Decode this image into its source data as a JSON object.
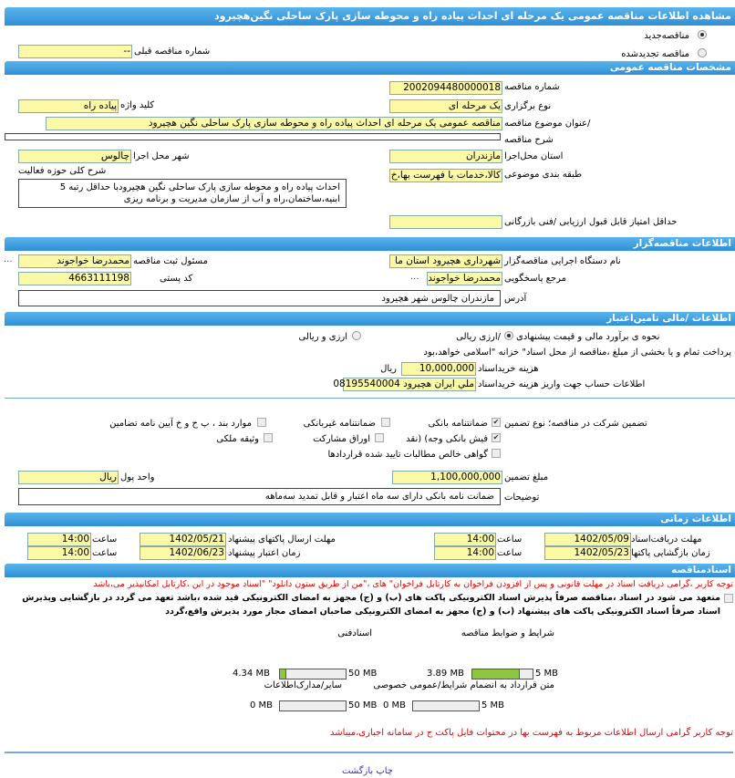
{
  "title": "مشاهده اطلاعات مناقصه  عمومی یک مرحله ای احداث پیاده راه و محوطه سازی پارک ساحلی نگین‌هچیرود",
  "tender_type": {
    "new_label": "مناقصه‌جدید",
    "renewed_label": "مناقصه تجدیدشده",
    "selected": "new",
    "prev_label": "شماره  مناقصه قبلی",
    "prev_value": "--"
  },
  "general": {
    "header": "مشخصات مناقصه عمومی",
    "number_label": "شماره مناقصه",
    "number": "2002094480000018",
    "holding_label": "نوع برگزاری",
    "holding": "یک مرحله ای",
    "keyword_label": "کلید واژه",
    "keyword": "پیاده راه",
    "subject_label": "/عنوان  موضوع مناقصه",
    "subject": "مناقصه عمومی یک مرحله ای احداث پیاده راه و محوطه سازی پارک ساحلی نگین هچیرود",
    "desc_label": "شرح مناقصه",
    "desc": "",
    "province_label": "استان محل‌اجرا",
    "province": "مازندران",
    "city_label": "شهر محل اجرا",
    "city": "چالوس",
    "category_label": "طبقه بندی موضوعی",
    "category": "کالا،خدمات با فهرست بها،خ",
    "scope_label": "شرح کلی حوزه فعالیت",
    "scope": "احداث پیاده راه و محوطه سازی پارک ساحلی نگین هچیرودبا حداقل رتبه 5 ابنیه،ساختمان،راه و آب از سازمان مدیریت و برنامه ریزی",
    "min_score_label": "حداقل امتیاز قابل قبول  ارزیابی /فنی بازرگانی",
    "min_score": ""
  },
  "organizer": {
    "header": "اطلاعات مناقصه‌گزار",
    "org_label": "نام دستگاه اجرایی  مناقصه‌گزار",
    "org": "شهرداری هچیرود استان ما",
    "registrar_label": "مسئول ثبت مناقصه",
    "registrar": "محمدرضا خواجوند",
    "respondent_label": "مرجع پاسخگویی",
    "respondent": "محمدرضا خواجوند",
    "postal_label": "کد پستی",
    "postal": "4663111198",
    "address_label": "آدرس",
    "address": "مازندران چالوس شهر هچیرود",
    "more": "..."
  },
  "finance": {
    "header": "اطلاعات /مالی تامین‌اعتبار",
    "estimate_label": "نحوه ی برآورد مالی و قیمت پیشنهادی",
    "opt_rial": "/ارزی ریالی",
    "opt_both": "ارزی و ریالی",
    "selected": "rial",
    "treasury_note": "پرداخت تمام و یا بخشی از مبلغ ،مناقصه از محل اسناد\" خزانه \"اسلامی خواهد،بود",
    "doc_fee_label": "هزینه خریداسناد",
    "doc_fee": "10,000,000",
    "doc_fee_unit": "ریال",
    "account_label": "اطلاعات حساب جهت واریز هزینه خریداسناد",
    "account": "ملي ايران هچيرود 08195540004"
  },
  "guarantee": {
    "label": "تضمین شرکت در مناقصه؛  نوع    تضمین",
    "options": [
      {
        "label": "ضمانتنامه  بانکی",
        "checked": true
      },
      {
        "label": "ضمانتنامه  غیربانکی",
        "checked": false
      },
      {
        "label": "موارد  بند ، پ ح و خ آیین نامه تضامین",
        "checked": false
      },
      {
        "label": "فیش  بانکی وجه) (نقد",
        "checked": true
      },
      {
        "label": "اوراق  مشارکت",
        "checked": false
      },
      {
        "label": "وثیقه ملکی",
        "checked": false
      },
      {
        "label": "گواهی  خالص مطالبات تایید شده قراردادها",
        "checked": false
      }
    ],
    "amount_label": "مبلغ تضمین",
    "amount": "1,100,000,000",
    "currency_label": "واحد پول",
    "currency": "ریال",
    "notes_label": "توضیحات",
    "notes": "ضمانت نامه بانکی دارای سه ماه  اعتبار و قابل تمدید سه‌ماهه"
  },
  "timing": {
    "header": "اطلاعات زمانی",
    "doc_deadline_label": "مهلت  دریافت‌اسناد",
    "doc_deadline": "1402/05/09",
    "doc_deadline_time": "14:00",
    "submit_label": "مهلت      ارسال  پاکتهای پیشنهاد",
    "submit": "1402/05/21",
    "submit_time": "14:00",
    "open_label": "زمان  بازگشایی پاکتها",
    "open": "1402/05/23",
    "open_time": "14:00",
    "validity_label": "زمان       اعتبار پیشنهاد",
    "validity": "1402/06/23",
    "validity_time": "14:00",
    "time_label": "ساعت"
  },
  "documents": {
    "header": "اسنادمناقصه",
    "notice": "توجه کاربر ،گرامی دریافت اسناد در مهلت قانونی و پس از افزودن فراخوان به کارتابل فراخوان\" های ،\"من از طریق ستون دانلود\" \"اسناد موجود در این ،کارتابل امکانپذیر می،باشد",
    "commit_1": "متعهد می شود در اسناد ،مناقصه صرفاً پذیرش اسناد الکترونیکی پاکت های (ب) و (ج) مجهز به امضای الکترونیکی قید شده ،باشد تعهد می گردد در بازگشایی وپذیرش",
    "commit_2": "اسناد صرفاً اسناد الکترونیکی پاکت های پیشنهاد (ب) و (ج) مجهز به امضای الکترونیکی صاحبان امضای مجاز مورد پذیرش واقع،گردد",
    "files": [
      {
        "label": "شرایط و  ضوابط مناقصه",
        "used": "3.89 MB",
        "max": "5 MB",
        "fraction": 0.778
      },
      {
        "label": "اسنادفنی",
        "used": "4.34 MB",
        "max": "50 MB",
        "fraction": 0.0868
      },
      {
        "label": "متن قرارداد به  انضمام شرایط/عمومی خصوصی",
        "used": "0 MB",
        "max": "5 MB",
        "fraction": 0
      },
      {
        "label": "سایر/مدارک‌اطلاعات",
        "used": "0 MB",
        "max": "50 MB",
        "fraction": 0
      }
    ],
    "price_notice": "توجه کاربر گرامی ارسال اطلاعات مربوط به فهرست بها در محتوات فایل پاکت ج در سامانه  اجباری،میباشد"
  },
  "footer": {
    "print": "چاپ",
    "back": "بازگشت"
  },
  "colors": {
    "header": "#3a9de0",
    "input": "#fbf8a6",
    "progress": "#8dc63f",
    "warning": "#e00000"
  }
}
